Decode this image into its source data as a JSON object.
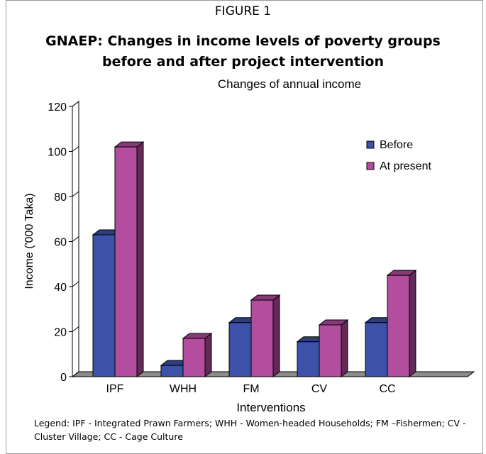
{
  "figure_label": "FIGURE 1",
  "figure_title_lines": [
    "GNAEP: Changes in income levels of poverty groups",
    "before and after project intervention"
  ],
  "legend_caption": "Legend: IPF - Integrated Prawn Farmers; WHH - Women-headed Households;  FM –Fishermen; CV - Cluster Village;  CC - Cage Culture",
  "chart_data": {
    "type": "bar",
    "title": "Changes of annual income",
    "xlabel": "Interventions",
    "ylabel": "Income ('000 Taka)",
    "ylim": [
      0,
      120
    ],
    "yticks": [
      0,
      20,
      40,
      60,
      80,
      100,
      120
    ],
    "categories": [
      "IPF",
      "WHH",
      "FM",
      "CV",
      "CC"
    ],
    "series": [
      {
        "name": "Before",
        "values": [
          63,
          5,
          24,
          15.5,
          24
        ],
        "color": "#3b52a8"
      },
      {
        "name": "At present",
        "values": [
          102,
          17,
          34,
          23,
          45
        ],
        "color": "#b34d9e"
      }
    ],
    "legend_position": "top-right",
    "grid": false,
    "style": "3d-column"
  }
}
